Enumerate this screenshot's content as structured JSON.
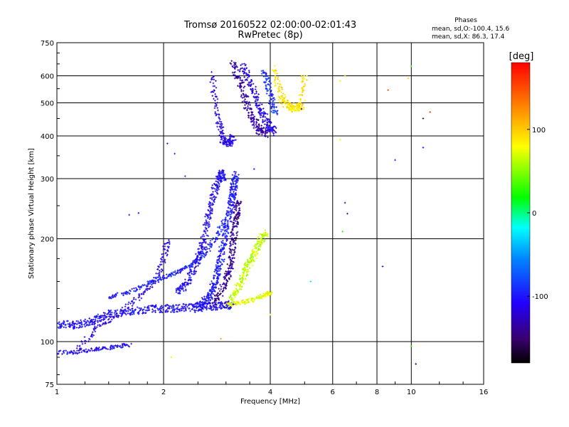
{
  "chart_data": {
    "type": "scatter",
    "title": "Tromsø 20160522 02:00:00-02:01:43",
    "subtitle": "RwPretec (8p)",
    "xlabel": "Frequency [MHz]",
    "ylabel": "Stationary phase Virtual Height [km]",
    "x_scale": "log",
    "y_scale": "log",
    "xlim": [
      1,
      16
    ],
    "ylim": [
      75,
      750
    ],
    "x_ticks": [
      1,
      2,
      4,
      6,
      8,
      10,
      16
    ],
    "x_tick_labels": [
      "1",
      "2",
      "4",
      "6",
      "8",
      "10",
      "16"
    ],
    "y_ticks": [
      75,
      100,
      200,
      300,
      400,
      500,
      600,
      750
    ],
    "y_tick_labels": [
      "75",
      "100",
      "200",
      "300",
      "400",
      "500",
      "600",
      "750"
    ],
    "grid": true,
    "phase_stats": {
      "heading": "Phases",
      "line_o": "mean, sd,O:-100.4, 15.6",
      "line_x": "mean, sd,X:  86.3, 17.4"
    },
    "colorbar": {
      "label": "[deg]",
      "range": [
        -180,
        180
      ],
      "ticks": [
        100,
        0,
        -100
      ],
      "tick_labels": [
        "100",
        "0",
        "-100"
      ]
    },
    "traces": [
      {
        "f": [
          1.0,
          1.1,
          1.2,
          1.3,
          1.4,
          1.6,
          1.8,
          2.0,
          2.2,
          2.4,
          2.6,
          2.8,
          3.0,
          3.15
        ],
        "h": [
          112,
          112,
          113,
          116,
          120,
          123,
          124,
          125,
          125,
          126,
          127,
          127,
          128,
          128
        ],
        "phase": -105,
        "n": 4
      },
      {
        "f": [
          1.0,
          1.1,
          1.2,
          1.3,
          1.4,
          1.5,
          1.6
        ],
        "h": [
          93,
          93,
          94,
          95,
          96,
          97,
          98
        ],
        "phase": -105,
        "n": 2
      },
      {
        "f": [
          1.15,
          1.3,
          1.5,
          1.7,
          1.9,
          2.0,
          2.05
        ],
        "h": [
          95,
          110,
          120,
          135,
          150,
          175,
          200
        ],
        "phase": -115,
        "n": 3
      },
      {
        "f": [
          1.4,
          1.6,
          1.8,
          2.0,
          2.2,
          2.4,
          2.6,
          2.8,
          3.0
        ],
        "h": [
          135,
          140,
          148,
          155,
          160,
          168,
          180,
          200,
          230
        ],
        "phase": -95,
        "n": 3
      },
      {
        "f": [
          2.2,
          2.35,
          2.5,
          2.6,
          2.7,
          2.8,
          2.9,
          2.95
        ],
        "h": [
          140,
          150,
          175,
          200,
          240,
          280,
          310,
          300
        ],
        "phase": -108,
        "n": 5
      },
      {
        "f": [
          2.5,
          2.7,
          2.8,
          2.9,
          3.0,
          3.1,
          3.15,
          3.2
        ],
        "h": [
          125,
          135,
          150,
          175,
          210,
          250,
          280,
          310
        ],
        "phase": -100,
        "n": 6
      },
      {
        "f": [
          2.8,
          3.0,
          3.1,
          3.15,
          3.2,
          3.25
        ],
        "h": [
          130,
          150,
          170,
          200,
          230,
          260
        ],
        "phase": -140,
        "n": 5
      },
      {
        "f": [
          3.1,
          3.3,
          3.5,
          3.7,
          3.9
        ],
        "h": [
          130,
          150,
          170,
          190,
          210
        ],
        "phase": 65,
        "n": 6
      },
      {
        "f": [
          3.0,
          3.3,
          3.6,
          3.9,
          4.0
        ],
        "h": [
          128,
          130,
          133,
          137,
          140
        ],
        "phase": 75,
        "n": 3
      },
      {
        "f": [
          2.75,
          2.85,
          2.95,
          3.05,
          3.15
        ],
        "h": [
          600,
          450,
          390,
          380,
          400
        ],
        "phase": -115,
        "n": 4
      },
      {
        "f": [
          3.15,
          3.3,
          3.5,
          3.7,
          3.9
        ],
        "h": [
          650,
          560,
          470,
          420,
          405
        ],
        "phase": -135,
        "n": 5
      },
      {
        "f": [
          3.35,
          3.55,
          3.75,
          3.95,
          4.1
        ],
        "h": [
          640,
          560,
          480,
          430,
          410
        ],
        "phase": -115,
        "n": 5
      },
      {
        "f": [
          3.85,
          3.95,
          4.05,
          4.15
        ],
        "h": [
          620,
          560,
          500,
          460
        ],
        "phase": -90,
        "n": 3
      },
      {
        "f": [
          4.1,
          4.3,
          4.5,
          4.7,
          4.9,
          5.0
        ],
        "h": [
          630,
          520,
          490,
          480,
          490,
          620
        ],
        "phase": 88,
        "n": 4
      }
    ],
    "scattered_points": [
      {
        "f": 6.3,
        "h": 580,
        "phase": 85
      },
      {
        "f": 6.3,
        "h": 390,
        "phase": 75
      },
      {
        "f": 6.4,
        "h": 210,
        "phase": 30
      },
      {
        "f": 6.5,
        "h": 600,
        "phase": 110
      },
      {
        "f": 6.5,
        "h": 255,
        "phase": -140
      },
      {
        "f": 6.6,
        "h": 237,
        "phase": -140
      },
      {
        "f": 8.3,
        "h": 166,
        "phase": -110
      },
      {
        "f": 8.6,
        "h": 545,
        "phase": 150
      },
      {
        "f": 9.0,
        "h": 340,
        "phase": -100
      },
      {
        "f": 9.8,
        "h": 590,
        "phase": 100
      },
      {
        "f": 10.0,
        "h": 640,
        "phase": 40
      },
      {
        "f": 10.0,
        "h": 97,
        "phase": 30
      },
      {
        "f": 10.3,
        "h": 86,
        "phase": -140
      },
      {
        "f": 10.8,
        "h": 450,
        "phase": -150
      },
      {
        "f": 10.8,
        "h": 370,
        "phase": -110
      },
      {
        "f": 11.3,
        "h": 470,
        "phase": 160
      },
      {
        "f": 4.9,
        "h": 480,
        "phase": -140
      },
      {
        "f": 5.2,
        "h": 150,
        "phase": -5
      },
      {
        "f": 1.6,
        "h": 235,
        "phase": -100
      },
      {
        "f": 1.7,
        "h": 238,
        "phase": -110
      },
      {
        "f": 2.05,
        "h": 380,
        "phase": -100
      },
      {
        "f": 2.15,
        "h": 355,
        "phase": -95
      },
      {
        "f": 2.3,
        "h": 305,
        "phase": -90
      },
      {
        "f": 3.6,
        "h": 320,
        "phase": -95
      },
      {
        "f": 2.9,
        "h": 102,
        "phase": 120
      },
      {
        "f": 2.1,
        "h": 90,
        "phase": 70
      },
      {
        "f": 4.0,
        "h": 120,
        "phase": 80
      }
    ]
  }
}
